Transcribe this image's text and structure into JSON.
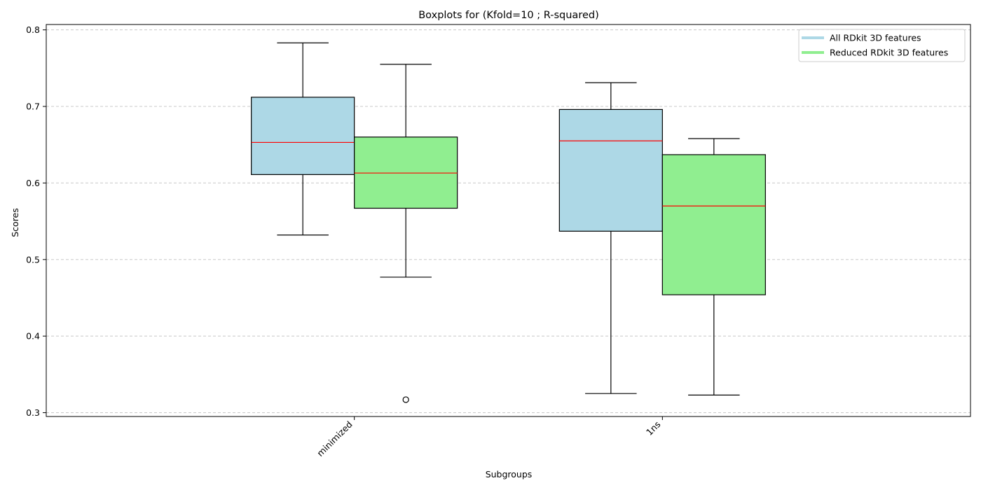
{
  "chart_data": {
    "type": "boxplot",
    "title": "Boxplots for (Kfold=10 ; R-squared)",
    "xlabel": "Subgroups",
    "ylabel": "Scores",
    "ylim": [
      0.295,
      0.807
    ],
    "yticks": [
      0.3,
      0.4,
      0.5,
      0.6,
      0.7,
      0.8
    ],
    "yticks_labels": [
      "0.3",
      "0.4",
      "0.5",
      "0.6",
      "0.7",
      "0.8"
    ],
    "grid": "y-dashed",
    "legend_position": "top-right",
    "categories": [
      "minimized",
      "1ns"
    ],
    "series": [
      {
        "name": "All RDkit 3D features",
        "color": "#add8e6",
        "boxes": [
          {
            "whisker_low": 0.532,
            "q1": 0.611,
            "median": 0.653,
            "q3": 0.712,
            "whisker_high": 0.783,
            "outliers": []
          },
          {
            "whisker_low": 0.325,
            "q1": 0.537,
            "median": 0.655,
            "q3": 0.696,
            "whisker_high": 0.731,
            "outliers": []
          }
        ]
      },
      {
        "name": "Reduced RDkit 3D features",
        "color": "#90ee90",
        "boxes": [
          {
            "whisker_low": 0.477,
            "q1": 0.567,
            "median": 0.613,
            "q3": 0.66,
            "whisker_high": 0.755,
            "outliers": [
              0.317
            ]
          },
          {
            "whisker_low": 0.323,
            "q1": 0.454,
            "median": 0.57,
            "q3": 0.637,
            "whisker_high": 0.658,
            "outliers": []
          }
        ]
      }
    ],
    "median_color": "#ff0000"
  }
}
